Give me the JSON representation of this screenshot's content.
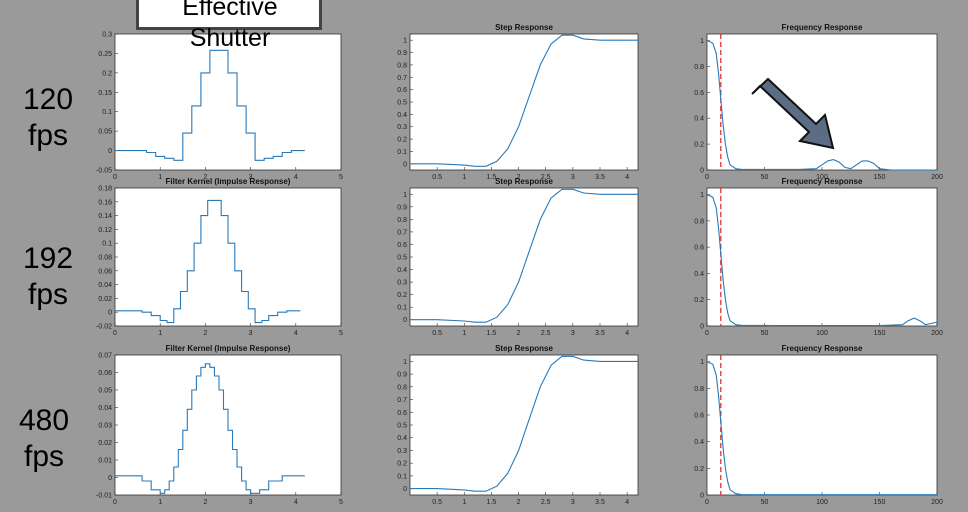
{
  "rows": [
    {
      "label_line1": "120",
      "label_line2": "fps"
    },
    {
      "label_line1": "192",
      "label_line2": "fps"
    },
    {
      "label_line1": "480",
      "label_line2": "fps"
    }
  ],
  "callout": {
    "line1": "Effective",
    "line2": "Shutter"
  },
  "colors": {
    "line": "#2a7ab8",
    "marker": "#e03030",
    "arrow_fill": "#5b6d85",
    "arrow_stroke": "#111111",
    "background": "#9a9a9a"
  },
  "chart_data": [
    {
      "type": "line",
      "title": "",
      "xlim": [
        0,
        5
      ],
      "ylim": [
        -0.05,
        0.3
      ],
      "xticks": [
        0,
        1,
        2,
        3,
        4,
        5
      ],
      "yticks": [
        -0.05,
        0,
        0.05,
        0.1,
        0.15,
        0.2,
        0.25,
        0.3
      ],
      "series": [
        {
          "x": [
            0,
            0.3,
            0.5,
            0.7,
            0.9,
            1.1,
            1.3,
            1.5,
            1.7,
            1.9,
            2.1,
            2.3,
            2.5,
            2.7,
            2.9,
            3.1,
            3.3,
            3.5,
            3.7,
            3.9,
            4.1,
            4.2
          ],
          "y": [
            0,
            0,
            0,
            -0.005,
            -0.015,
            -0.02,
            -0.025,
            0.045,
            0.115,
            0.2,
            0.258,
            0.258,
            0.2,
            0.115,
            0.045,
            -0.025,
            -0.02,
            -0.015,
            -0.005,
            0,
            0,
            0
          ],
          "step": true
        }
      ]
    },
    {
      "type": "line",
      "title": "Step Response",
      "xlim": [
        0,
        4.2
      ],
      "ylim": [
        -0.05,
        1.05
      ],
      "xticks": [
        0.5,
        1,
        1.5,
        2,
        2.5,
        3,
        3.5,
        4
      ],
      "yticks": [
        0,
        0.1,
        0.2,
        0.3,
        0.4,
        0.5,
        0.6,
        0.7,
        0.8,
        0.9,
        1
      ],
      "series": [
        {
          "x": [
            0,
            0.5,
            1,
            1.2,
            1.4,
            1.6,
            1.8,
            2.0,
            2.2,
            2.4,
            2.6,
            2.8,
            3.0,
            3.2,
            3.5,
            3.8,
            4.2
          ],
          "y": [
            0,
            0,
            -0.01,
            -0.02,
            -0.02,
            0.02,
            0.12,
            0.3,
            0.55,
            0.8,
            0.97,
            1.04,
            1.04,
            1.01,
            1.0,
            1.0,
            1.0
          ]
        }
      ]
    },
    {
      "type": "line",
      "title": "Frequency Response",
      "xlim": [
        0,
        200
      ],
      "ylim": [
        0,
        1.05
      ],
      "xticks": [
        0,
        50,
        100,
        150,
        200
      ],
      "yticks": [
        0,
        0.2,
        0.4,
        0.6,
        0.8,
        1
      ],
      "marker_x": 12,
      "series": [
        {
          "x": [
            0,
            5,
            8,
            10,
            12,
            14,
            16,
            18,
            20,
            25,
            30,
            40,
            60,
            80,
            95,
            100,
            105,
            110,
            115,
            120,
            125,
            130,
            135,
            140,
            145,
            150,
            160,
            200
          ],
          "y": [
            1,
            0.98,
            0.9,
            0.75,
            0.55,
            0.35,
            0.2,
            0.1,
            0.04,
            0.01,
            0.005,
            0.005,
            0.005,
            0.005,
            0.01,
            0.04,
            0.07,
            0.08,
            0.06,
            0.02,
            0.01,
            0.04,
            0.07,
            0.07,
            0.05,
            0.01,
            0,
            0
          ]
        }
      ]
    },
    {
      "type": "line",
      "title": "Filter Kernel (Impulse Response)",
      "xlim": [
        0,
        5
      ],
      "ylim": [
        -0.02,
        0.18
      ],
      "xticks": [
        0,
        1,
        2,
        3,
        4,
        5
      ],
      "yticks": [
        -0.02,
        0,
        0.02,
        0.04,
        0.06,
        0.08,
        0.1,
        0.12,
        0.14,
        0.16,
        0.18
      ],
      "series": [
        {
          "x": [
            0,
            0.3,
            0.6,
            0.8,
            1.0,
            1.15,
            1.3,
            1.45,
            1.6,
            1.75,
            1.9,
            2.05,
            2.2,
            2.35,
            2.5,
            2.65,
            2.8,
            2.95,
            3.1,
            3.25,
            3.4,
            3.6,
            3.8,
            4.1
          ],
          "y": [
            0.002,
            0.002,
            0.0,
            -0.005,
            -0.012,
            -0.015,
            0.005,
            0.03,
            0.06,
            0.1,
            0.14,
            0.162,
            0.162,
            0.14,
            0.1,
            0.06,
            0.03,
            0.005,
            -0.015,
            -0.012,
            -0.005,
            0.0,
            0.002,
            0.002
          ],
          "step": true
        }
      ]
    },
    {
      "type": "line",
      "title": "Step Response",
      "xlim": [
        0,
        4.2
      ],
      "ylim": [
        -0.05,
        1.05
      ],
      "xticks": [
        0.5,
        1,
        1.5,
        2,
        2.5,
        3,
        3.5,
        4
      ],
      "yticks": [
        0,
        0.1,
        0.2,
        0.3,
        0.4,
        0.5,
        0.6,
        0.7,
        0.8,
        0.9,
        1
      ],
      "series": [
        {
          "x": [
            0,
            0.5,
            1,
            1.2,
            1.4,
            1.6,
            1.8,
            2.0,
            2.2,
            2.4,
            2.6,
            2.8,
            3.0,
            3.2,
            3.5,
            3.8,
            4.2
          ],
          "y": [
            0,
            0,
            -0.01,
            -0.02,
            -0.02,
            0.02,
            0.12,
            0.3,
            0.55,
            0.8,
            0.97,
            1.04,
            1.04,
            1.01,
            1.0,
            1.0,
            1.0
          ]
        }
      ]
    },
    {
      "type": "line",
      "title": "Frequency Response",
      "xlim": [
        0,
        200
      ],
      "ylim": [
        0,
        1.05
      ],
      "xticks": [
        0,
        50,
        100,
        150,
        200
      ],
      "yticks": [
        0,
        0.2,
        0.4,
        0.6,
        0.8,
        1
      ],
      "marker_x": 12,
      "series": [
        {
          "x": [
            0,
            5,
            8,
            10,
            12,
            14,
            16,
            18,
            20,
            25,
            30,
            60,
            100,
            150,
            170,
            175,
            180,
            185,
            190,
            200
          ],
          "y": [
            1,
            0.98,
            0.9,
            0.75,
            0.55,
            0.35,
            0.2,
            0.1,
            0.04,
            0.01,
            0.005,
            0.003,
            0.003,
            0.003,
            0.01,
            0.04,
            0.06,
            0.04,
            0.01,
            0.03
          ]
        }
      ]
    },
    {
      "type": "line",
      "title": "Filter Kernel (Impulse Response)",
      "xlim": [
        0,
        5
      ],
      "ylim": [
        -0.01,
        0.07
      ],
      "xticks": [
        0,
        1,
        2,
        3,
        4,
        5
      ],
      "yticks": [
        -0.01,
        0,
        0.01,
        0.02,
        0.03,
        0.04,
        0.05,
        0.06,
        0.07
      ],
      "series": [
        {
          "x": [
            0,
            0.3,
            0.6,
            0.8,
            1.0,
            1.1,
            1.2,
            1.3,
            1.4,
            1.5,
            1.6,
            1.7,
            1.8,
            1.9,
            2.0,
            2.1,
            2.2,
            2.3,
            2.4,
            2.5,
            2.6,
            2.7,
            2.8,
            2.9,
            3.0,
            3.2,
            3.4,
            3.7,
            4.0,
            4.2
          ],
          "y": [
            0.001,
            0.001,
            -0.002,
            -0.007,
            -0.009,
            -0.007,
            -0.002,
            0.006,
            0.016,
            0.027,
            0.039,
            0.05,
            0.058,
            0.063,
            0.065,
            0.063,
            0.058,
            0.05,
            0.039,
            0.027,
            0.016,
            0.006,
            -0.002,
            -0.007,
            -0.009,
            -0.007,
            -0.002,
            0.001,
            0.001,
            0.001
          ],
          "step": true
        }
      ]
    },
    {
      "type": "line",
      "title": "Step Response",
      "xlim": [
        0,
        4.2
      ],
      "ylim": [
        -0.05,
        1.05
      ],
      "xticks": [
        0.5,
        1,
        1.5,
        2,
        2.5,
        3,
        3.5,
        4
      ],
      "yticks": [
        0,
        0.1,
        0.2,
        0.3,
        0.4,
        0.5,
        0.6,
        0.7,
        0.8,
        0.9,
        1
      ],
      "series": [
        {
          "x": [
            0,
            0.5,
            1,
            1.2,
            1.4,
            1.6,
            1.8,
            2.0,
            2.2,
            2.4,
            2.6,
            2.8,
            3.0,
            3.2,
            3.5,
            3.8,
            4.2
          ],
          "y": [
            0,
            0,
            -0.01,
            -0.02,
            -0.02,
            0.02,
            0.12,
            0.3,
            0.55,
            0.8,
            0.97,
            1.04,
            1.04,
            1.01,
            1.0,
            1.0,
            1.0
          ]
        }
      ]
    },
    {
      "type": "line",
      "title": "Frequency Response",
      "xlim": [
        0,
        200
      ],
      "ylim": [
        0,
        1.05
      ],
      "xticks": [
        0,
        50,
        100,
        150,
        200
      ],
      "yticks": [
        0,
        0.2,
        0.4,
        0.6,
        0.8,
        1
      ],
      "marker_x": 12,
      "series": [
        {
          "x": [
            0,
            5,
            8,
            10,
            12,
            14,
            16,
            18,
            20,
            25,
            30,
            60,
            100,
            150,
            200
          ],
          "y": [
            1,
            0.98,
            0.9,
            0.75,
            0.55,
            0.35,
            0.2,
            0.1,
            0.04,
            0.01,
            0.003,
            0.002,
            0.002,
            0.002,
            0.002
          ]
        }
      ]
    }
  ]
}
